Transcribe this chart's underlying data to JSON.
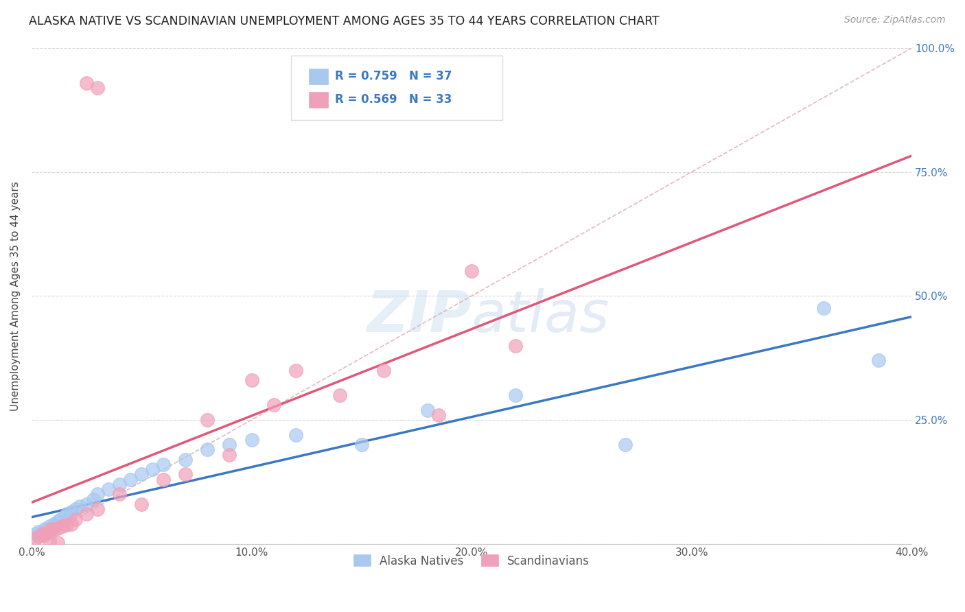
{
  "title": "ALASKA NATIVE VS SCANDINAVIAN UNEMPLOYMENT AMONG AGES 35 TO 44 YEARS CORRELATION CHART",
  "source": "Source: ZipAtlas.com",
  "ylabel": "Unemployment Among Ages 35 to 44 years",
  "xlim": [
    0.0,
    0.4
  ],
  "ylim": [
    0.0,
    1.0
  ],
  "xtick_labels": [
    "0.0%",
    "10.0%",
    "20.0%",
    "30.0%",
    "40.0%"
  ],
  "xtick_vals": [
    0.0,
    0.1,
    0.2,
    0.3,
    0.4
  ],
  "ytick_labels_right": [
    "100.0%",
    "75.0%",
    "50.0%",
    "25.0%",
    ""
  ],
  "ytick_vals": [
    1.0,
    0.75,
    0.5,
    0.25,
    0.0
  ],
  "legend_label1": "Alaska Natives",
  "legend_label2": "Scandinavians",
  "R1": "0.759",
  "N1": "37",
  "R2": "0.569",
  "N2": "33",
  "color_blue": "#A8C8F0",
  "color_blue_line": "#3B78C4",
  "color_pink": "#F0A0B8",
  "color_pink_line": "#E05878",
  "color_diag": "#E0B0B8",
  "background_color": "#FFFFFF",
  "alaska_x": [
    0.002,
    0.003,
    0.004,
    0.005,
    0.006,
    0.007,
    0.008,
    0.009,
    0.01,
    0.011,
    0.012,
    0.013,
    0.015,
    0.016,
    0.018,
    0.02,
    0.022,
    0.025,
    0.028,
    0.03,
    0.035,
    0.04,
    0.045,
    0.05,
    0.055,
    0.06,
    0.07,
    0.08,
    0.09,
    0.1,
    0.12,
    0.15,
    0.18,
    0.22,
    0.27,
    0.36,
    0.385
  ],
  "alaska_y": [
    0.02,
    0.025,
    0.018,
    0.022,
    0.03,
    0.028,
    0.035,
    0.032,
    0.04,
    0.038,
    0.045,
    0.05,
    0.055,
    0.06,
    0.065,
    0.07,
    0.075,
    0.08,
    0.09,
    0.1,
    0.11,
    0.12,
    0.13,
    0.14,
    0.15,
    0.16,
    0.17,
    0.19,
    0.2,
    0.21,
    0.22,
    0.2,
    0.27,
    0.3,
    0.2,
    0.475,
    0.37
  ],
  "scand_x": [
    0.002,
    0.003,
    0.005,
    0.006,
    0.007,
    0.008,
    0.009,
    0.01,
    0.012,
    0.014,
    0.016,
    0.018,
    0.02,
    0.025,
    0.03,
    0.04,
    0.05,
    0.06,
    0.07,
    0.08,
    0.09,
    0.1,
    0.11,
    0.12,
    0.14,
    0.16,
    0.185,
    0.2,
    0.22,
    0.03,
    0.025,
    0.008,
    0.012
  ],
  "scand_y": [
    0.01,
    0.015,
    0.02,
    0.018,
    0.022,
    0.025,
    0.03,
    0.028,
    0.032,
    0.035,
    0.038,
    0.04,
    0.05,
    0.06,
    0.07,
    0.1,
    0.08,
    0.13,
    0.14,
    0.25,
    0.18,
    0.33,
    0.28,
    0.35,
    0.3,
    0.35,
    0.26,
    0.55,
    0.4,
    0.92,
    0.93,
    0.005,
    0.002
  ]
}
